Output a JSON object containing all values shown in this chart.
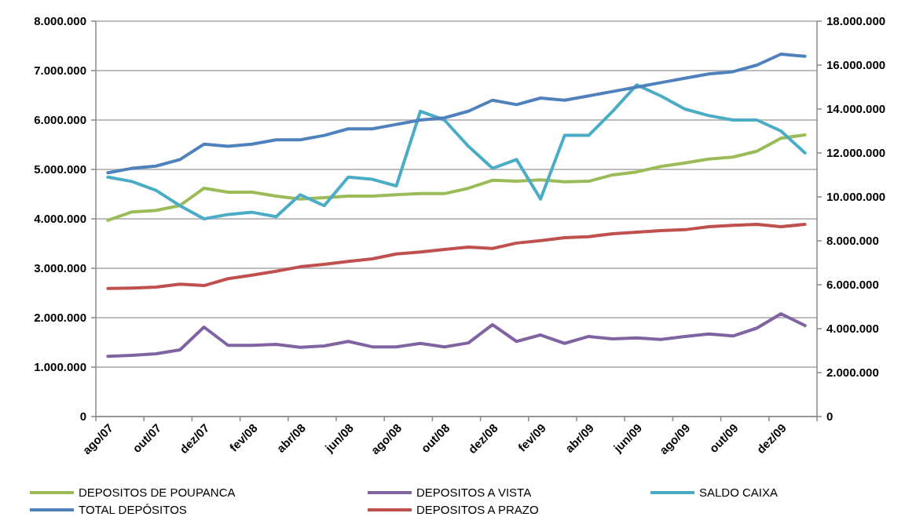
{
  "chart_data": {
    "type": "line",
    "categories": [
      "ago/07",
      null,
      "out/07",
      null,
      "dez/07",
      null,
      "fev/08",
      null,
      "abr/08",
      null,
      "jun/08",
      null,
      "ago/08",
      null,
      "out/08",
      null,
      "dez/08",
      null,
      "fev/09",
      null,
      "abr/09",
      null,
      "jun/09",
      null,
      "ago/09",
      null,
      "out/09",
      null,
      "dez/09",
      null
    ],
    "series": [
      {
        "name": "DEPOSITOS DE POUPANCA",
        "color": "#9bbb59",
        "values": [
          3970000,
          4140000,
          4170000,
          4270000,
          4620000,
          4540000,
          4540000,
          4460000,
          4400000,
          4430000,
          4460000,
          4460000,
          4490000,
          4510000,
          4510000,
          4620000,
          4780000,
          4760000,
          4790000,
          4750000,
          4760000,
          4890000,
          4950000,
          5060000,
          5130000,
          5210000,
          5250000,
          5370000,
          5630000,
          5700000
        ]
      },
      {
        "name": "DEPOSITOS A VISTA",
        "color": "#8064a2",
        "values": [
          1220000,
          1240000,
          1270000,
          1350000,
          1810000,
          1440000,
          1440000,
          1460000,
          1400000,
          1430000,
          1520000,
          1410000,
          1410000,
          1480000,
          1410000,
          1490000,
          1860000,
          1520000,
          1650000,
          1480000,
          1620000,
          1570000,
          1590000,
          1560000,
          1620000,
          1670000,
          1630000,
          1790000,
          2080000,
          1840000
        ]
      },
      {
        "name": "SALDO CAIXA",
        "color": "#4bacc6",
        "axis": "y2",
        "values": [
          10900000,
          10700000,
          10300000,
          9600000,
          9000000,
          9200000,
          9300000,
          9100000,
          10100000,
          9600000,
          10900000,
          10800000,
          10500000,
          13900000,
          13500000,
          12300000,
          11300000,
          11700000,
          9900000,
          12800000,
          12800000,
          13900000,
          15100000,
          14600000,
          14000000,
          13700000,
          13500000,
          13500000,
          13000000,
          12000000
        ]
      },
      {
        "name": "TOTAL DEPÓSITOS",
        "color": "#4f81bd",
        "axis": "y2",
        "values": [
          11100000,
          11300000,
          11400000,
          11700000,
          12400000,
          12300000,
          12400000,
          12600000,
          12600000,
          12800000,
          13100000,
          13100000,
          13300000,
          13500000,
          13600000,
          13900000,
          14400000,
          14200000,
          14500000,
          14400000,
          14600000,
          14800000,
          15000000,
          15200000,
          15400000,
          15600000,
          15700000,
          16000000,
          16500000,
          16400000
        ]
      },
      {
        "name": "DEPOSITOS A PRAZO",
        "color": "#c0504d",
        "values": [
          2590000,
          2600000,
          2620000,
          2680000,
          2650000,
          2790000,
          2860000,
          2940000,
          3030000,
          3080000,
          3140000,
          3190000,
          3290000,
          3330000,
          3380000,
          3430000,
          3400000,
          3510000,
          3560000,
          3620000,
          3640000,
          3700000,
          3730000,
          3760000,
          3780000,
          3840000,
          3870000,
          3890000,
          3840000,
          3890000
        ]
      }
    ],
    "ylim": [
      0,
      8000000
    ],
    "yticks": [
      0,
      {
        "value": 1000000,
        "label": "1.000.000"
      },
      {
        "value": 2000000,
        "label": "2.000.000"
      },
      {
        "value": 3000000,
        "label": "3.000.000"
      },
      {
        "value": 4000000,
        "label": "4.000.000"
      },
      {
        "value": 5000000,
        "label": "5.000.000"
      },
      {
        "value": 6000000,
        "label": "6.000.000"
      },
      {
        "value": 7000000,
        "label": "7.000.000"
      },
      {
        "value": 8000000,
        "label": "8.000.000"
      }
    ],
    "y2lim": [
      0,
      18000000
    ],
    "y2ticks": [
      0,
      {
        "value": 2000000,
        "label": "2.000.000"
      },
      {
        "value": 4000000,
        "label": "4.000.000"
      },
      {
        "value": 6000000,
        "label": "6.000.000"
      },
      {
        "value": 8000000,
        "label": "8.000.000"
      },
      {
        "value": 10000000,
        "label": "10.000.000"
      },
      {
        "value": 12000000,
        "label": "12.000.000"
      },
      {
        "value": 14000000,
        "label": "14.000.000"
      },
      {
        "value": 16000000,
        "label": "16.000.000"
      },
      {
        "value": 18000000,
        "label": "18.000.000"
      }
    ],
    "grid": "y",
    "legend": "bottom",
    "marker": "none",
    "line_style": "solid"
  }
}
